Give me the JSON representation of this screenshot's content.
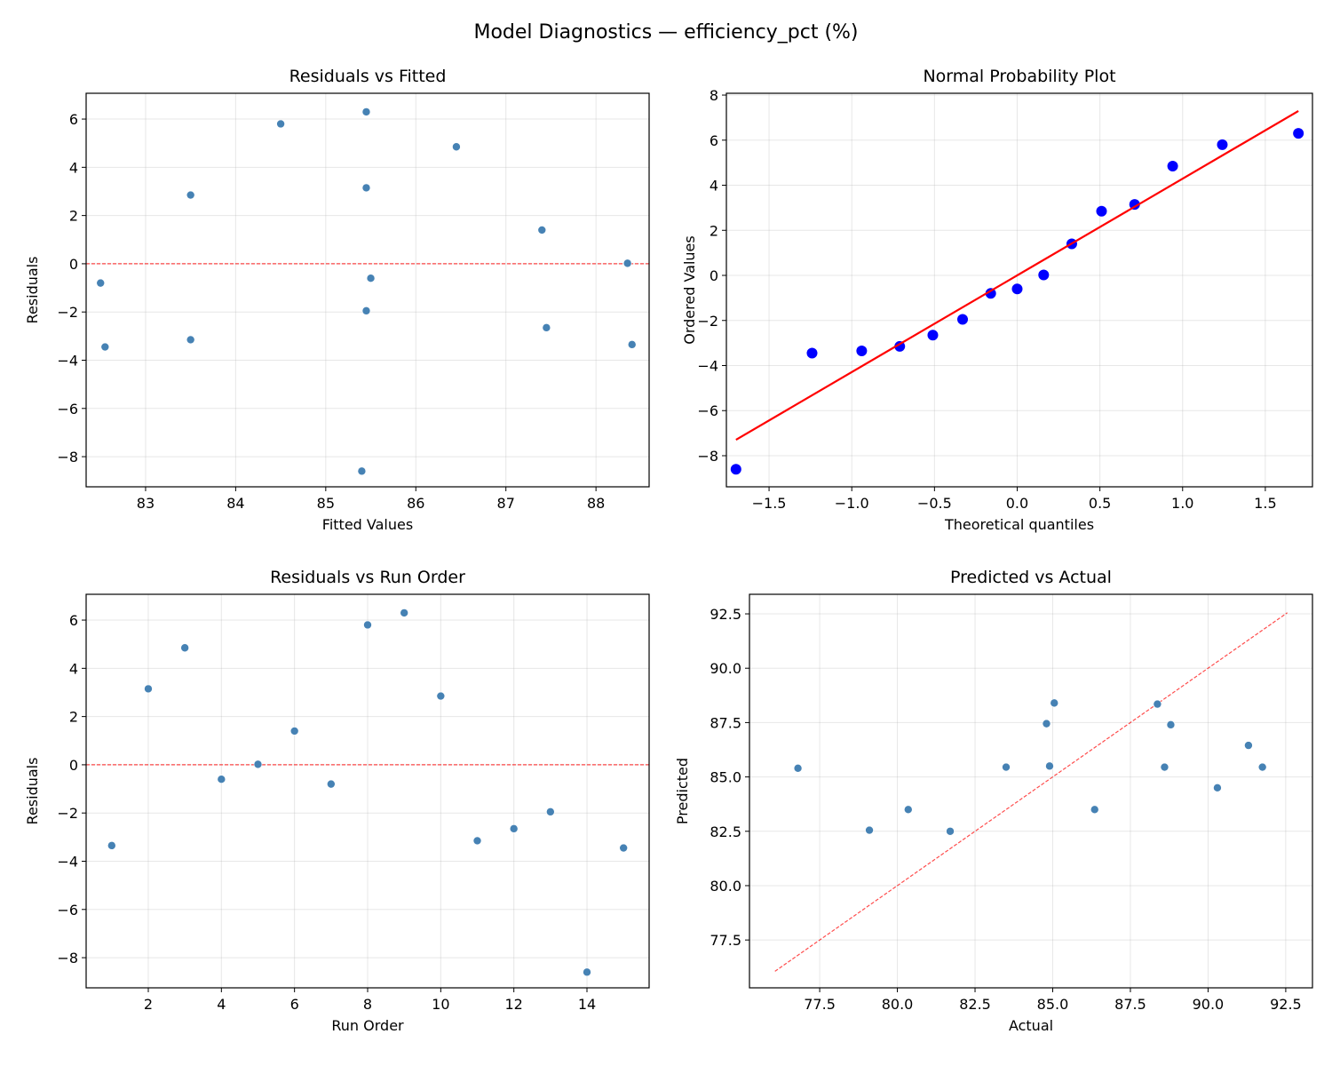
{
  "figure": {
    "title": "Model Diagnostics — efficiency_pct (%)"
  },
  "chart_data": [
    {
      "type": "scatter",
      "title": "Residuals vs Fitted",
      "xlabel": "Fitted Values",
      "ylabel": "Residuals",
      "xlim": [
        82.34,
        88.59
      ],
      "ylim": [
        -9.25,
        7.07
      ],
      "xticks": [
        83,
        84,
        85,
        86,
        87,
        88
      ],
      "yticks": [
        -8,
        -6,
        -4,
        -2,
        0,
        2,
        4,
        6
      ],
      "grid": true,
      "point_color": "#4682b4",
      "x": [
        88.4,
        85.45,
        86.45,
        85.5,
        88.35,
        87.4,
        82.5,
        84.5,
        85.45,
        83.5,
        83.5,
        87.45,
        85.45,
        85.4,
        82.55
      ],
      "y": [
        -3.35,
        3.15,
        4.85,
        -0.6,
        0.02,
        1.4,
        -0.8,
        5.8,
        6.3,
        2.85,
        -3.15,
        -2.65,
        -1.95,
        -8.6,
        -3.45
      ],
      "reference_line": {
        "kind": "horizontal",
        "y": 0,
        "style": "dashed",
        "color": "#ff0000"
      }
    },
    {
      "type": "scatter",
      "title": "Normal Probability Plot",
      "xlabel": "Theoretical quantiles",
      "ylabel": "Ordered Values",
      "xlim": [
        -1.758,
        1.785
      ],
      "ylim": [
        -9.38,
        8.08
      ],
      "xticks": [
        -1.5,
        -1.0,
        -0.5,
        0.0,
        0.5,
        1.0,
        1.5
      ],
      "yticks": [
        -8,
        -6,
        -4,
        -2,
        0,
        2,
        4,
        6,
        8
      ],
      "grid": true,
      "point_color": "#0000ff",
      "x": [
        -1.7,
        -1.24,
        -0.94,
        -0.71,
        -0.51,
        -0.33,
        -0.16,
        0.0,
        0.16,
        0.33,
        0.51,
        0.71,
        0.94,
        1.24,
        1.7
      ],
      "y": [
        -8.6,
        -3.45,
        -3.35,
        -3.15,
        -2.65,
        -1.95,
        -0.8,
        -0.6,
        0.02,
        1.4,
        2.85,
        3.15,
        4.85,
        5.8,
        6.3
      ],
      "fit_line": {
        "slope": 4.29,
        "intercept": 0.0,
        "x_range": [
          -1.7,
          1.7
        ],
        "color": "#ff0000",
        "style": "solid"
      }
    },
    {
      "type": "scatter",
      "title": "Residuals vs Run Order",
      "xlabel": "Run Order",
      "ylabel": "Residuals",
      "xlim": [
        0.3,
        15.7
      ],
      "ylim": [
        -9.25,
        7.07
      ],
      "xticks": [
        2,
        4,
        6,
        8,
        10,
        12,
        14
      ],
      "yticks": [
        -8,
        -6,
        -4,
        -2,
        0,
        2,
        4,
        6
      ],
      "grid": true,
      "point_color": "#4682b4",
      "x": [
        1,
        2,
        3,
        4,
        5,
        6,
        7,
        8,
        9,
        10,
        11,
        12,
        13,
        14,
        15
      ],
      "y": [
        -3.35,
        3.15,
        4.85,
        -0.6,
        0.02,
        1.4,
        -0.8,
        5.8,
        6.3,
        2.85,
        -3.15,
        -2.65,
        -1.95,
        -8.6,
        -3.45
      ],
      "reference_line": {
        "kind": "horizontal",
        "y": 0,
        "style": "dashed",
        "color": "#ff0000"
      }
    },
    {
      "type": "scatter",
      "title": "Predicted vs Actual",
      "xlabel": "Actual",
      "ylabel": "Predicted",
      "xlim": [
        75.24,
        93.36
      ],
      "ylim": [
        75.3,
        93.4
      ],
      "xticks": [
        77.5,
        80.0,
        82.5,
        85.0,
        87.5,
        90.0,
        92.5
      ],
      "yticks": [
        77.5,
        80.0,
        82.5,
        85.0,
        87.5,
        90.0,
        92.5
      ],
      "grid": true,
      "point_color": "#4682b4",
      "x": [
        85.05,
        88.6,
        91.3,
        84.9,
        88.37,
        88.8,
        81.7,
        90.3,
        91.75,
        86.35,
        80.35,
        84.8,
        83.5,
        76.8,
        79.1
      ],
      "y": [
        88.4,
        85.45,
        86.45,
        85.5,
        88.35,
        87.4,
        82.5,
        84.5,
        85.45,
        83.5,
        83.5,
        87.45,
        85.45,
        85.4,
        82.55
      ],
      "reference_line": {
        "kind": "diagonal",
        "range": [
          76.06,
          92.55
        ],
        "style": "dashed",
        "color": "#ff0000"
      }
    }
  ]
}
